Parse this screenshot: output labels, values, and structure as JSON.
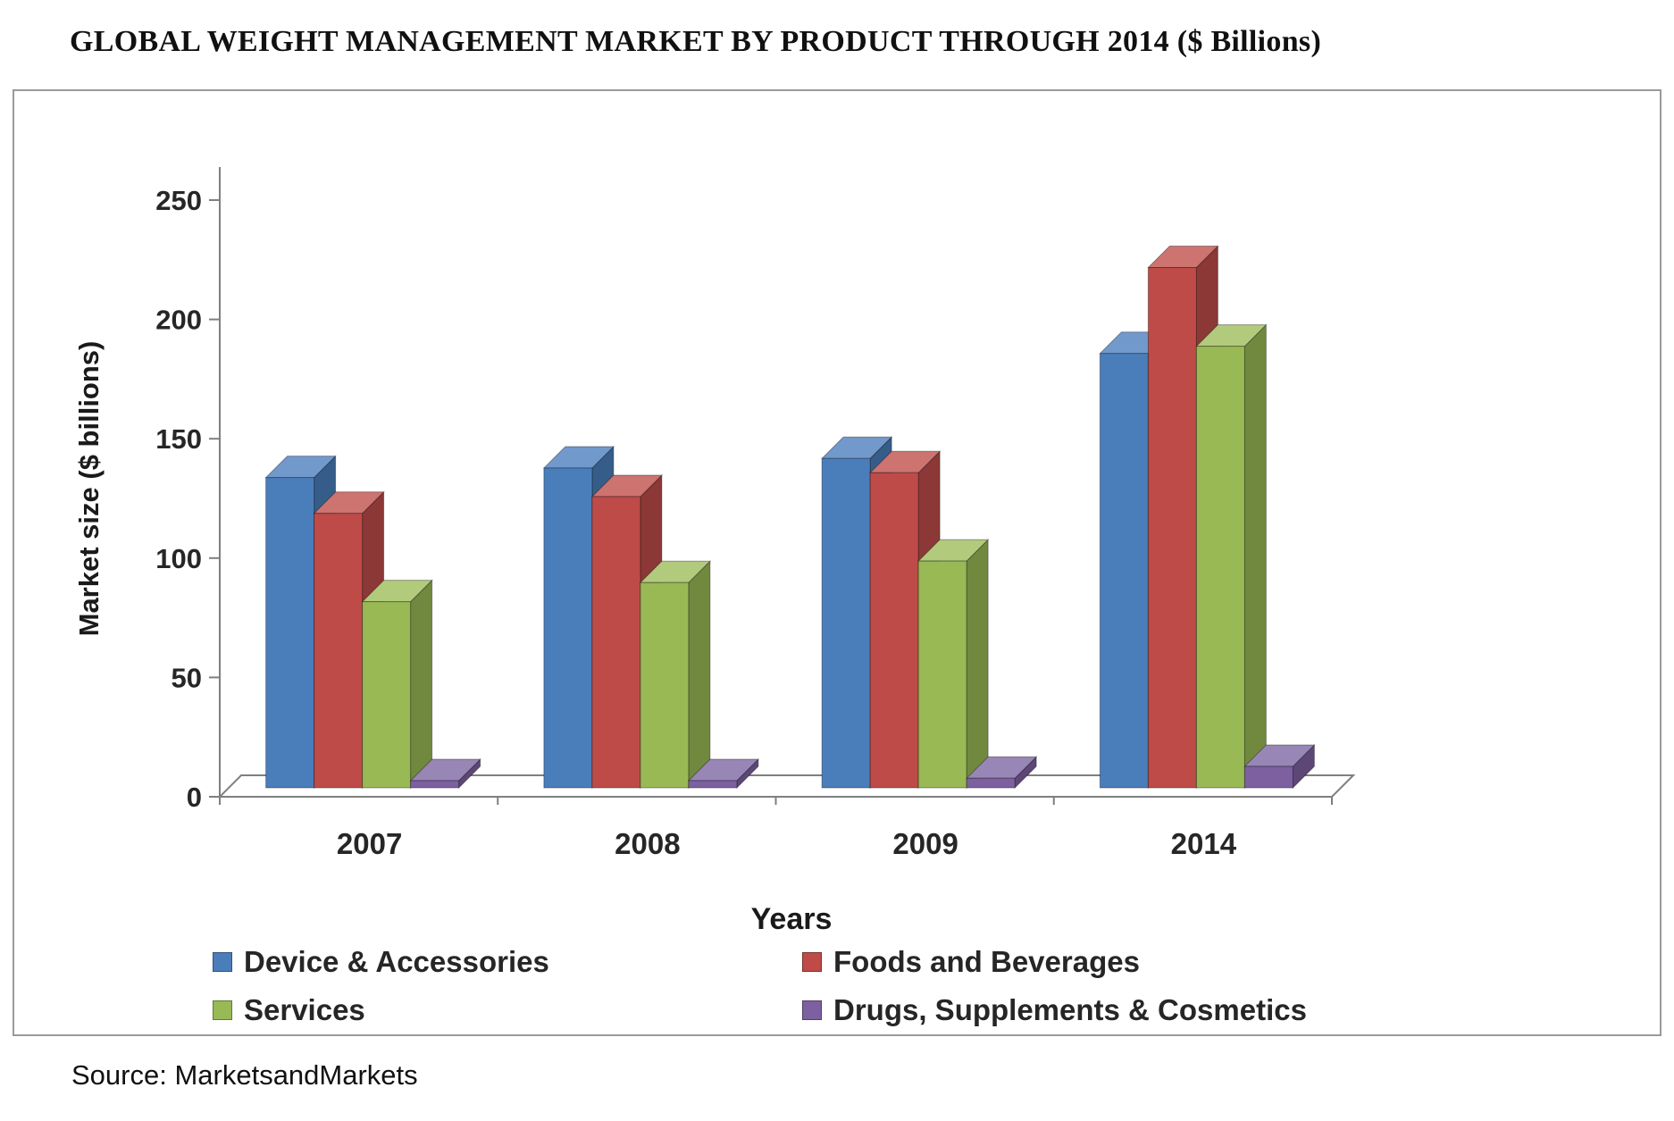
{
  "title": "GLOBAL WEIGHT MANAGEMENT MARKET BY PRODUCT THROUGH 2014 ($ Billions)",
  "source": "Source: MarketsandMarkets",
  "chart_data": {
    "type": "bar",
    "style": "3d-clustered-column",
    "title": "GLOBAL WEIGHT MANAGEMENT MARKET BY PRODUCT THROUGH 2014 ($ Billions)",
    "xlabel": "Years",
    "ylabel": "Market size ($ billions)",
    "ylim": [
      0,
      250
    ],
    "ytick_step": 50,
    "grid": false,
    "legend_position": "bottom",
    "categories": [
      "2007",
      "2008",
      "2009",
      "2014"
    ],
    "series": [
      {
        "name": "Device & Accessories",
        "color": "#4a7ebb",
        "color_top": "#7299cb",
        "color_side": "#365d8a",
        "values": [
          130,
          134,
          138,
          182
        ]
      },
      {
        "name": "Foods and Beverages",
        "color": "#be4b48",
        "color_top": "#cd7370",
        "color_side": "#8c3836",
        "values": [
          115,
          122,
          132,
          218
        ]
      },
      {
        "name": "Services",
        "color": "#98b954",
        "color_top": "#b2ca7c",
        "color_side": "#71893f",
        "values": [
          78,
          86,
          95,
          185
        ]
      },
      {
        "name": "Drugs, Supplements & Cosmetics",
        "color": "#7d60a0",
        "color_top": "#9886b6",
        "color_side": "#5d4777",
        "values": [
          3,
          3,
          4,
          9
        ]
      }
    ]
  }
}
